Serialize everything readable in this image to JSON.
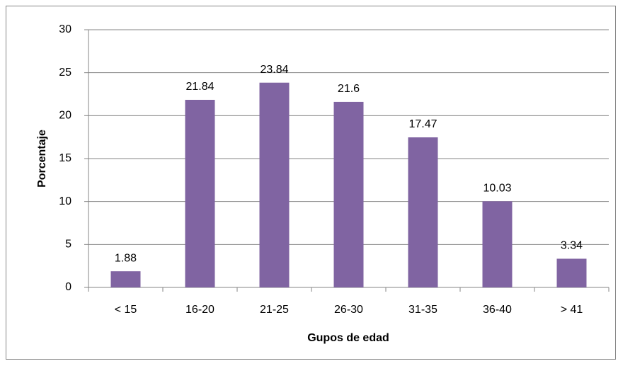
{
  "chart_data": {
    "type": "bar",
    "categories": [
      "< 15",
      "16-20",
      "21-25",
      "26-30",
      "31-35",
      "36-40",
      "> 41"
    ],
    "values": [
      1.88,
      21.84,
      23.84,
      21.6,
      17.47,
      10.03,
      3.34
    ],
    "color": "#8064a2",
    "x_label": "Gupos de edad",
    "y_label": "Porcentaje",
    "ylim": [
      0,
      30
    ],
    "yticks": [
      0,
      5,
      10,
      15,
      20,
      25,
      30
    ],
    "grid": true
  }
}
